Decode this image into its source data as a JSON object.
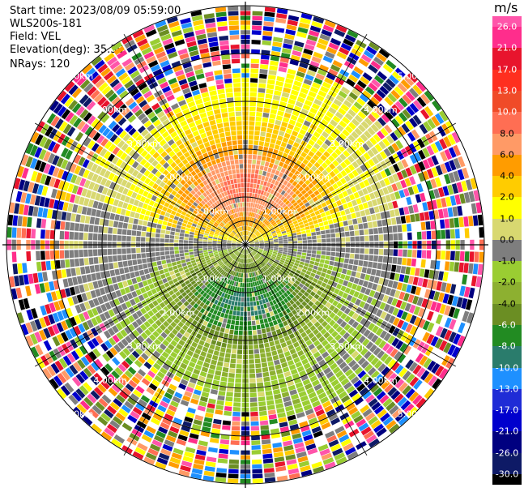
{
  "header": {
    "start_time": "Start time: 2023/08/09 05:59:00",
    "instrument": "WLS200s-181",
    "field": "Field: VEL",
    "elevation": "Elevation(deg): 35.30",
    "nrays": "NRays: 120"
  },
  "colorbar": {
    "unit": "m/s",
    "ticks": [
      "26.0",
      "21.0",
      "17.0",
      "13.0",
      "10.0",
      "8.0",
      "6.0",
      "4.0",
      "2.0",
      "1.0",
      "0.0",
      "-1.0",
      "-2.0",
      "-4.0",
      "-6.0",
      "-8.0",
      "-10.0",
      "-13.0",
      "-17.0",
      "-21.0",
      "-26.0",
      "-30.0"
    ],
    "colors": [
      "#ff55aa",
      "#ff2d8c",
      "#e8142d",
      "#ff2f1f",
      "#f04b28",
      "#ff6e53",
      "#ff9a66",
      "#ff9c00",
      "#ffcc00",
      "#ffff00",
      "#d8d870",
      "#7e7e7e",
      "#9acd32",
      "#8db030",
      "#6b8e23",
      "#228b22",
      "#2a7c6c",
      "#1e90ff",
      "#1f2cd6",
      "#0000cd",
      "#000080",
      "#0e1a66",
      "#000000"
    ]
  },
  "chart_data": {
    "type": "heatmap",
    "projection": "polar PPI",
    "field": "VEL",
    "units": "m/s",
    "elevation_deg": 35.3,
    "nrays": 120,
    "range_ring_labels": [
      "1.00km",
      "2.00km",
      "3.00km",
      "4.00km",
      "5.00km"
    ],
    "rings_km": [
      1,
      2,
      3,
      4,
      5
    ],
    "approx_valid_data_radius_km": 3.5,
    "colorbar_min": -30,
    "colorbar_max": 26,
    "pattern": {
      "receding_sector_center_deg": 0,
      "receding_peak_ms": 8.0,
      "approaching_sector_center_deg": 180,
      "approaching_peak_ms": -8.0
    }
  }
}
